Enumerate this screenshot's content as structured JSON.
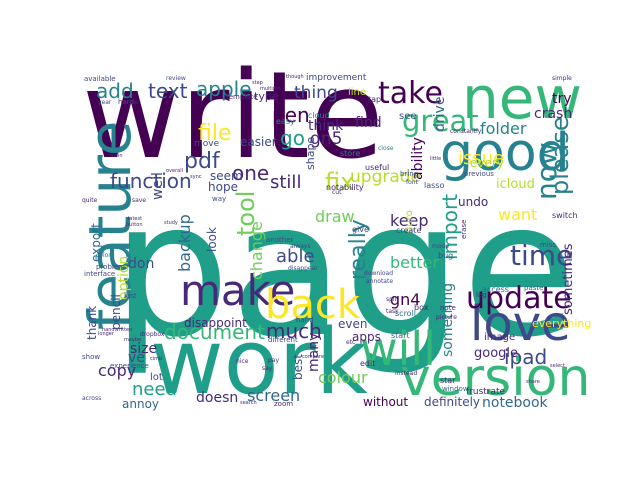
{
  "palette": {
    "dark_purple": "#440154",
    "purple": "#482878",
    "indigo": "#3e4989",
    "blue": "#31688e",
    "slate": "#26828e",
    "teal": "#1f9e89",
    "green": "#35b779",
    "lime": "#6ece58",
    "yellow_green": "#b5de2b",
    "yellow": "#fde725"
  },
  "words": [
    {
      "text": "page",
      "color": "teal"
    },
    {
      "text": "write",
      "color": "dark_purple"
    },
    {
      "text": "work",
      "color": "teal"
    },
    {
      "text": "new",
      "color": "green"
    },
    {
      "text": "good",
      "color": "slate"
    },
    {
      "text": "feature",
      "color": "slate"
    },
    {
      "text": "version",
      "color": "green"
    },
    {
      "text": "love",
      "color": "indigo"
    },
    {
      "text": "will",
      "color": "green"
    },
    {
      "text": "make",
      "color": "purple"
    },
    {
      "text": "back",
      "color": "yellow"
    },
    {
      "text": "update",
      "color": "dark_purple"
    },
    {
      "text": "take",
      "color": "dark_purple"
    },
    {
      "text": "great",
      "color": "green"
    },
    {
      "text": "now",
      "color": "slate"
    },
    {
      "text": "time",
      "color": "indigo"
    },
    {
      "text": "please",
      "color": "slate"
    },
    {
      "text": "fix",
      "color": "yellow_green"
    },
    {
      "text": "pdf",
      "color": "indigo"
    },
    {
      "text": "file",
      "color": "yellow"
    },
    {
      "text": "function",
      "color": "indigo"
    },
    {
      "text": "pen",
      "color": "dark_purple"
    },
    {
      "text": "apple",
      "color": "slate"
    },
    {
      "text": "text",
      "color": "indigo"
    },
    {
      "text": "add",
      "color": "slate"
    },
    {
      "text": "go",
      "color": "teal"
    },
    {
      "text": "one",
      "color": "purple"
    },
    {
      "text": "still",
      "color": "purple"
    },
    {
      "text": "thing",
      "color": "indigo"
    },
    {
      "text": "gn5",
      "color": "purple"
    },
    {
      "text": "upgrade",
      "color": "yellow_green"
    },
    {
      "text": "tool",
      "color": "lime"
    },
    {
      "text": "change",
      "color": "lime"
    },
    {
      "text": "able",
      "color": "indigo"
    },
    {
      "text": "backup",
      "color": "blue"
    },
    {
      "text": "really",
      "color": "slate"
    },
    {
      "text": "import",
      "color": "teal"
    },
    {
      "text": "issue",
      "color": "yellow"
    },
    {
      "text": "folder",
      "color": "slate"
    },
    {
      "text": "document",
      "color": "green"
    },
    {
      "text": "much",
      "color": "purple"
    },
    {
      "text": "ipad",
      "color": "indigo"
    },
    {
      "text": "need",
      "color": "teal"
    },
    {
      "text": "colour",
      "color": "lime"
    },
    {
      "text": "screen",
      "color": "blue"
    },
    {
      "text": "copy",
      "color": "purple"
    },
    {
      "text": "notebook",
      "color": "blue"
    },
    {
      "text": "gn4",
      "color": "dark_purple"
    },
    {
      "text": "want",
      "color": "yellow"
    },
    {
      "text": "better",
      "color": "green"
    },
    {
      "text": "keep",
      "color": "purple"
    },
    {
      "text": "draw",
      "color": "lime"
    },
    {
      "text": "ability",
      "color": "dark_purple"
    },
    {
      "text": "crash",
      "color": "purple"
    },
    {
      "text": "try",
      "color": "dark_purple"
    },
    {
      "text": "find",
      "color": "purple"
    },
    {
      "text": "think",
      "color": "purple"
    },
    {
      "text": "drive",
      "color": "blue"
    },
    {
      "text": "export",
      "color": "blue"
    },
    {
      "text": "option",
      "color": "yellow_green"
    },
    {
      "text": "don",
      "color": "indigo"
    },
    {
      "text": "well",
      "color": "indigo"
    },
    {
      "text": "ve",
      "color": "indigo"
    },
    {
      "text": "size",
      "color": "purple"
    },
    {
      "text": "many",
      "color": "purple"
    },
    {
      "text": "doesn",
      "color": "purple"
    },
    {
      "text": "something",
      "color": "slate"
    },
    {
      "text": "sometimes",
      "color": "purple"
    },
    {
      "text": "google",
      "color": "purple"
    },
    {
      "text": "icloud",
      "color": "yellow_green"
    },
    {
      "text": "every",
      "color": "yellow_green"
    },
    {
      "text": "undo",
      "color": "purple"
    },
    {
      "text": "easier",
      "color": "indigo"
    },
    {
      "text": "seem",
      "color": "indigo"
    },
    {
      "text": "hope",
      "color": "indigo"
    },
    {
      "text": "look",
      "color": "indigo"
    },
    {
      "text": "pencil",
      "color": "indigo"
    },
    {
      "text": "thank",
      "color": "indigo"
    },
    {
      "text": "disappoint",
      "color": "purple"
    },
    {
      "text": "annoy",
      "color": "blue"
    },
    {
      "text": "even",
      "color": "indigo"
    },
    {
      "text": "apps",
      "color": "purple"
    },
    {
      "text": "without",
      "color": "dark_purple"
    },
    {
      "text": "definitely",
      "color": "indigo"
    },
    {
      "text": "best",
      "color": "indigo"
    },
    {
      "text": "everything",
      "color": "yellow"
    },
    {
      "text": "type",
      "color": "purple"
    },
    {
      "text": "shape",
      "color": "indigo"
    },
    {
      "text": "guro",
      "color": "yellow_green"
    },
    {
      "text": "see",
      "color": "indigo"
    },
    {
      "text": "line",
      "color": "yellow_green"
    },
    {
      "text": "lot",
      "color": "indigo"
    },
    {
      "text": "image",
      "color": "purple"
    },
    {
      "text": "improvement",
      "color": "indigo"
    },
    {
      "text": "notability",
      "color": "purple"
    },
    {
      "text": "store",
      "color": "slate"
    },
    {
      "text": "move",
      "color": "indigo"
    },
    {
      "text": "cloud",
      "color": "slate"
    },
    {
      "text": "easy",
      "color": "slate"
    },
    {
      "text": "useful",
      "color": "purple"
    },
    {
      "text": "lasso",
      "color": "indigo"
    },
    {
      "text": "switch",
      "color": "purple"
    },
    {
      "text": "access",
      "color": "blue"
    },
    {
      "text": "tap",
      "color": "purple"
    },
    {
      "text": "template",
      "color": "purple"
    },
    {
      "text": "edit",
      "color": "purple"
    },
    {
      "text": "star",
      "color": "purple"
    },
    {
      "text": "window",
      "color": "blue"
    },
    {
      "text": "start",
      "color": "blue"
    },
    {
      "text": "scroll",
      "color": "blue"
    },
    {
      "text": "box",
      "color": "purple"
    },
    {
      "text": "bug",
      "color": "indigo"
    },
    {
      "text": "create",
      "color": "indigo"
    },
    {
      "text": "give",
      "color": "indigo"
    },
    {
      "text": "another",
      "color": "indigo"
    },
    {
      "text": "frustrate",
      "color": "purple"
    },
    {
      "text": "experience",
      "color": "indigo"
    },
    {
      "text": "interface",
      "color": "indigo"
    },
    {
      "text": "available",
      "color": "indigo"
    },
    {
      "text": "hard",
      "color": "indigo"
    },
    {
      "text": "year",
      "color": "indigo"
    },
    {
      "text": "zoom",
      "color": "purple"
    },
    {
      "text": "note",
      "color": "purple"
    },
    {
      "text": "different",
      "color": "indigo"
    },
    {
      "text": "hand",
      "color": "indigo"
    },
    {
      "text": "miss",
      "color": "indigo"
    },
    {
      "text": "previous",
      "color": "indigo"
    },
    {
      "text": "constantly",
      "color": "purple"
    },
    {
      "text": "erase",
      "color": "purple"
    },
    {
      "text": "bring",
      "color": "indigo"
    },
    {
      "text": "font",
      "color": "indigo"
    },
    {
      "text": "paste",
      "color": "blue"
    },
    {
      "text": "last",
      "color": "indigo"
    },
    {
      "text": "show",
      "color": "indigo"
    },
    {
      "text": "across",
      "color": "indigo"
    },
    {
      "text": "mode",
      "color": "indigo"
    },
    {
      "text": "lag",
      "color": "purple"
    },
    {
      "text": "simple",
      "color": "purple"
    },
    {
      "text": "review",
      "color": "indigo"
    },
    {
      "text": "save",
      "color": "purple"
    },
    {
      "text": "quite",
      "color": "purple"
    },
    {
      "text": "color",
      "color": "blue"
    },
    {
      "text": "problem",
      "color": "indigo"
    },
    {
      "text": "way",
      "color": "indigo"
    },
    {
      "text": "instead",
      "color": "purple"
    },
    {
      "text": "always",
      "color": "indigo"
    },
    {
      "text": "split",
      "color": "purple"
    },
    {
      "text": "etc",
      "color": "purple"
    },
    {
      "text": "close",
      "color": "slate"
    },
    {
      "text": "picture",
      "color": "purple"
    },
    {
      "text": "cut",
      "color": "purple"
    },
    {
      "text": "pay",
      "color": "purple"
    },
    {
      "text": "dropbox",
      "color": "purple"
    },
    {
      "text": "say",
      "color": "purple"
    },
    {
      "text": "nice",
      "color": "purple"
    },
    {
      "text": "disappear",
      "color": "indigo"
    },
    {
      "text": "download",
      "color": "indigo"
    },
    {
      "text": "annotate",
      "color": "indigo"
    },
    {
      "text": "task",
      "color": "purple"
    },
    {
      "text": "handwritten",
      "color": "purple"
    },
    {
      "text": "maybe",
      "color": "purple"
    },
    {
      "text": "far",
      "color": "purple"
    },
    {
      "text": "search",
      "color": "purple"
    },
    {
      "text": "cimb",
      "color": "purple"
    },
    {
      "text": "longer",
      "color": "purple"
    },
    {
      "text": "little",
      "color": "purple"
    },
    {
      "text": "main",
      "color": "purple"
    },
    {
      "text": "overall",
      "color": "purple"
    },
    {
      "text": "sync",
      "color": "purple"
    },
    {
      "text": "top",
      "color": "purple"
    },
    {
      "text": "step",
      "color": "purple"
    },
    {
      "text": "multiple",
      "color": "purple"
    },
    {
      "text": "though",
      "color": "purple"
    },
    {
      "text": "compare",
      "color": "purple"
    },
    {
      "text": "latest",
      "color": "purple"
    },
    {
      "text": "button",
      "color": "purple"
    },
    {
      "text": "study",
      "color": "purple"
    },
    {
      "text": "share",
      "color": "purple"
    },
    {
      "text": "select",
      "color": "purple"
    }
  ]
}
